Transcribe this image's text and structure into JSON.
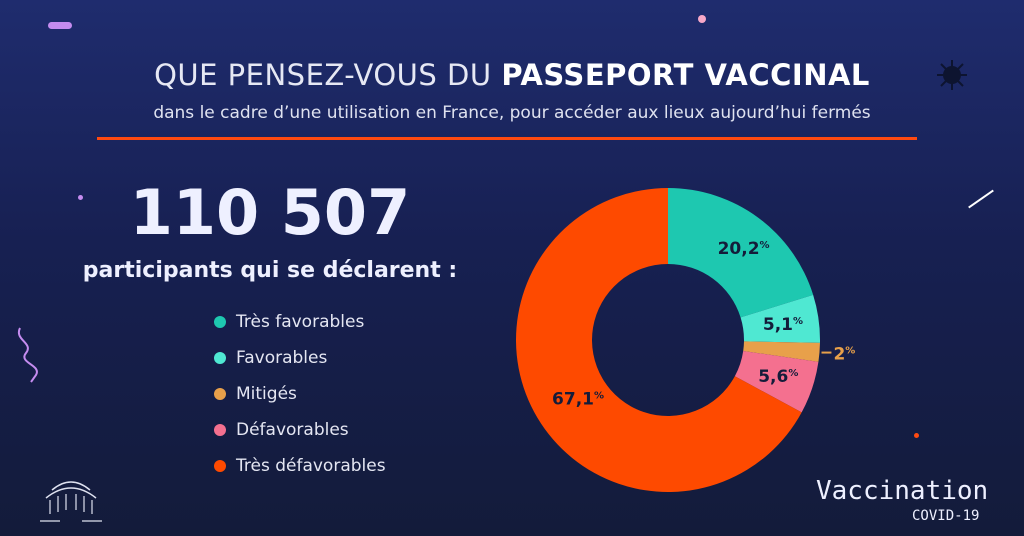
{
  "header": {
    "title_light": "QUE PENSEZ-VOUS DU ",
    "title_bold": "PASSEPORT VACCINAL",
    "subtitle": "dans le cadre d’une utilisation en France, pour accéder aux lieux aujourd’hui fermés"
  },
  "stats": {
    "count": "110 507",
    "label": "participants qui se déclarent :"
  },
  "brand": {
    "name": "Vaccination",
    "sub": "COVID-19"
  },
  "chart_data": {
    "type": "pie",
    "donut": true,
    "title": "Que pensez-vous du passeport vaccinal",
    "categories": [
      "Très favorables",
      "Favorables",
      "Mitigés",
      "Défavorables",
      "Très défavorables"
    ],
    "values": [
      20.2,
      5.1,
      2,
      5.6,
      67.1
    ],
    "labels": [
      "20,2",
      "5,1",
      "2",
      "5,6",
      "67,1"
    ],
    "colors": [
      "#1ec8b0",
      "#4fe8d2",
      "#e8a04a",
      "#f4708f",
      "#fe4a00"
    ],
    "legend": "left"
  }
}
